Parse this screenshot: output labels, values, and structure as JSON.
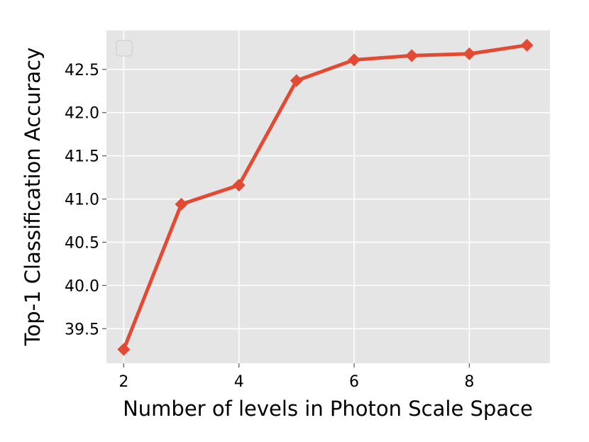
{
  "chart_data": {
    "type": "line",
    "title": "",
    "xlabel": "Number of levels in Photon Scale Space",
    "ylabel": "Top-1 Classification Accuracy",
    "x": [
      2,
      3,
      4,
      5,
      6,
      7,
      8,
      9
    ],
    "series": [
      {
        "values": [
          39.26,
          40.94,
          41.16,
          42.37,
          42.61,
          42.66,
          42.68,
          42.78
        ],
        "color": "#e24a33",
        "marker": "diamond"
      }
    ],
    "xlim": [
      1.7,
      9.4
    ],
    "ylim": [
      39.1,
      42.95
    ],
    "xticks": [
      2,
      4,
      6,
      8
    ],
    "xtick_labels": [
      "2",
      "4",
      "6",
      "8"
    ],
    "yticks": [
      39.5,
      40.0,
      40.5,
      41.0,
      41.5,
      42.0,
      42.5
    ],
    "ytick_labels": [
      "39.5",
      "40.0",
      "40.5",
      "41.0",
      "41.5",
      "42.0",
      "42.5"
    ],
    "grid": true,
    "legend": {
      "placement": "upper-left",
      "entries": []
    },
    "style": {
      "background": "#e5e5e5",
      "grid_color": "#ffffff",
      "text_color": "#000000"
    }
  }
}
